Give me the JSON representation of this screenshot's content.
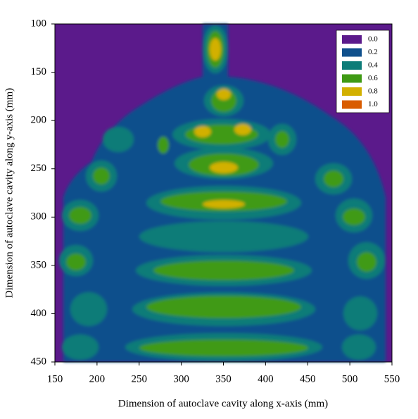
{
  "chart_data": {
    "type": "contour",
    "xlabel": "Dimension of autoclave cavity along x-axis (mm)",
    "ylabel": "Dimension of autoclave cavity along y-axis (mm)",
    "xlim": [
      150,
      550
    ],
    "xticks": [
      150,
      200,
      250,
      300,
      350,
      400,
      450,
      500,
      550
    ],
    "ylim": [
      450,
      100
    ],
    "yticks": [
      100,
      150,
      200,
      250,
      300,
      350,
      400,
      450
    ],
    "levels": [
      {
        "value": 0,
        "label": "0.0"
      },
      0.2,
      0.4,
      0.6,
      0.8,
      {
        "value": 1,
        "label": "1.0"
      }
    ],
    "colors": [
      "#5b1a8b",
      "#0f508c",
      "#0d7c78",
      "#3f9a14",
      "#d2b000",
      "#d95c00"
    ],
    "legend": "upper right"
  }
}
